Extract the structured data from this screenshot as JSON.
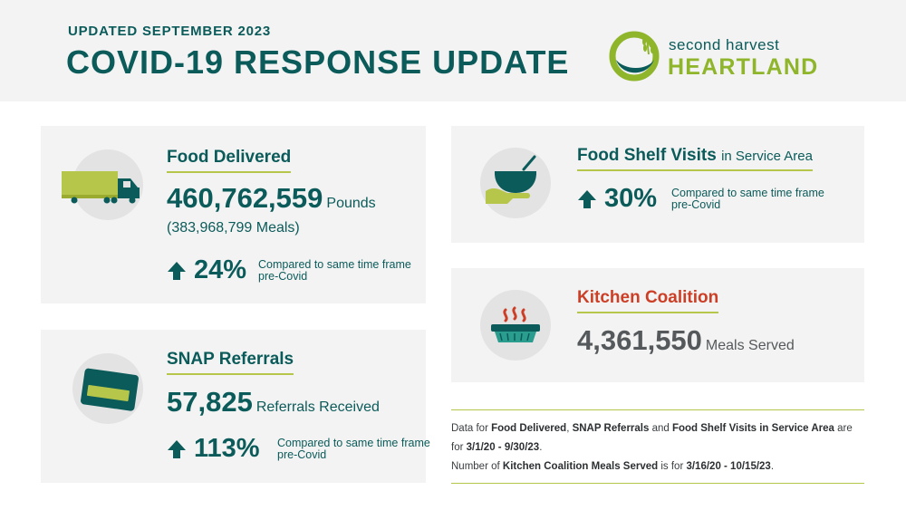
{
  "header": {
    "updated": "UPDATED SEPTEMBER 2023",
    "title": "COVID-19 RESPONSE UPDATE"
  },
  "logo": {
    "line1": "second harvest",
    "line2": "HEARTLAND"
  },
  "food_delivered": {
    "title": "Food Delivered",
    "icon": "truck-icon",
    "value": "460,762,559",
    "unit": "Pounds",
    "meals": "(383,968,799 Meals)",
    "change": "24%",
    "change_note": "Compared to same time frame pre-Covid"
  },
  "snap_referrals": {
    "title": "SNAP Referrals",
    "icon": "card-icon",
    "value": "57,825",
    "unit": "Referrals Received",
    "change": "113%",
    "change_note": "Compared to same time frame pre-Covid"
  },
  "food_shelf_visits": {
    "title": "Food Shelf Visits",
    "title_suffix": "in Service Area",
    "icon": "bowl-hand-icon",
    "change": "30%",
    "change_note": "Compared to same time frame pre-Covid"
  },
  "kitchen_coalition": {
    "title": "Kitchen Coalition",
    "icon": "hot-dish-icon",
    "value": "4,361,550",
    "unit": "Meals Served"
  },
  "footnote": {
    "line1_a": "Data for ",
    "line1_b": "Food Delivered",
    "line1_c": ", ",
    "line1_d": "SNAP Referrals",
    "line1_e": " and ",
    "line1_f": "Food Shelf Visits in Service Area",
    "line1_g": " are for ",
    "line1_h": "3/1/20 - 9/30/23",
    "line1_i": ".",
    "line2_a": "Number of ",
    "line2_b": "Kitchen Coalition Meals Served",
    "line2_c": " is for ",
    "line2_d": "3/16/20 - 10/15/23",
    "line2_e": "."
  },
  "colors": {
    "teal": "#0b5b5a",
    "lime": "#b6c64a",
    "red": "#cc3f26",
    "gray_bg": "#f3f3f3"
  }
}
